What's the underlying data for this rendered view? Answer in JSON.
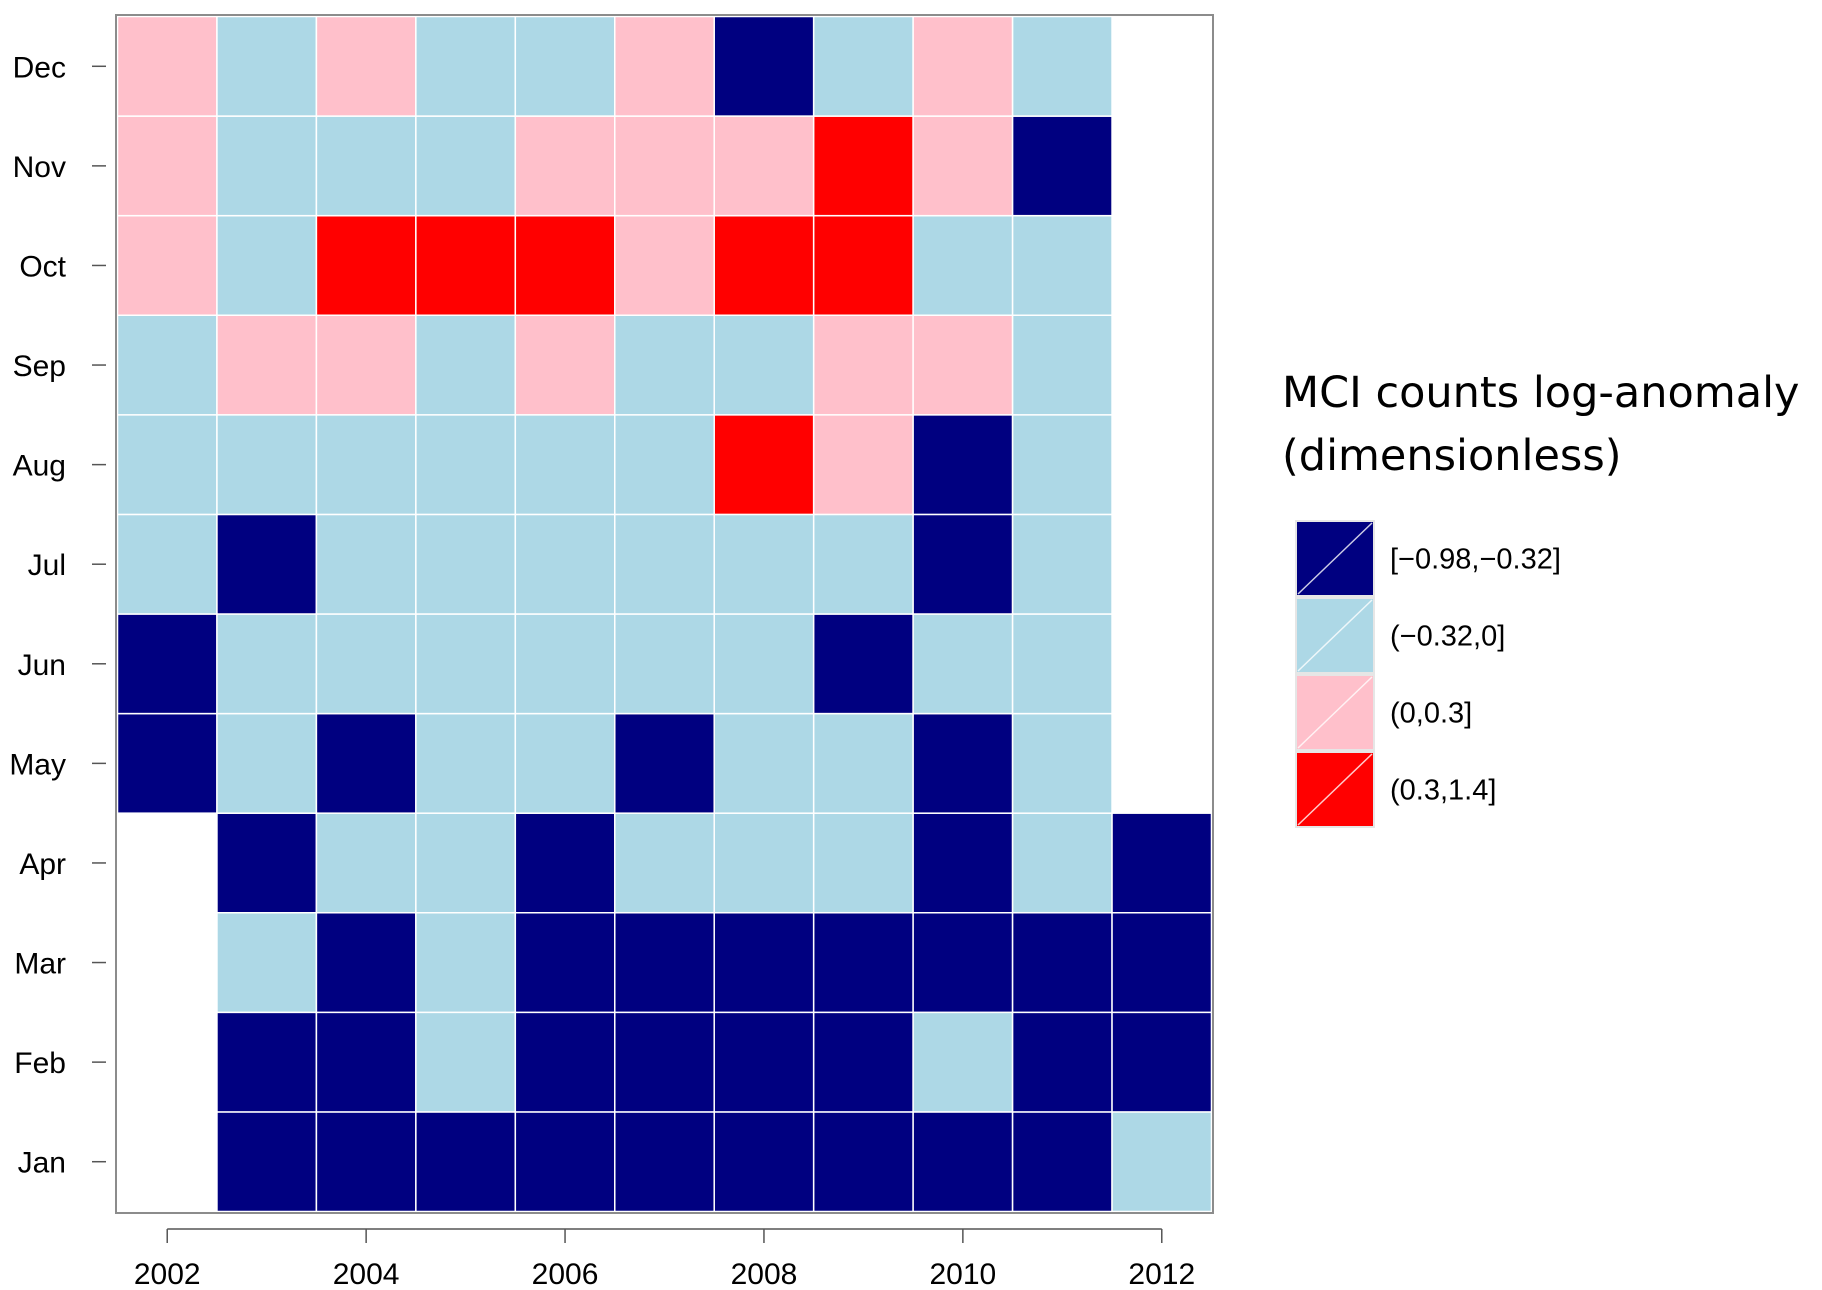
{
  "chart_data": {
    "type": "heatmap",
    "x": [
      "2002",
      "2003",
      "2004",
      "2005",
      "2006",
      "2007",
      "2008",
      "2009",
      "2010",
      "2011",
      "2012"
    ],
    "x_tick_labels": [
      "2002",
      "2004",
      "2006",
      "2008",
      "2010",
      "2012"
    ],
    "y": [
      "Jan",
      "Feb",
      "Mar",
      "Apr",
      "May",
      "Jun",
      "Jul",
      "Aug",
      "Sep",
      "Oct",
      "Nov",
      "Dec"
    ],
    "legend_title": [
      "MCI counts log-anomaly",
      "(dimensionless)"
    ],
    "categories": [
      {
        "label": "[−0.98,−0.32]",
        "color": "#000080"
      },
      {
        "label": "(−0.32,0]",
        "color": "#ADD8E6"
      },
      {
        "label": "(0,0.3]",
        "color": "#FFC0CB"
      },
      {
        "label": "(0.3,1.4]",
        "color": "#FF0000"
      }
    ],
    "values_note": "category index per cell; null = no data; rows Jan..Dec, columns 2002..2012",
    "values": [
      [
        null,
        0,
        0,
        0,
        0,
        0,
        0,
        0,
        0,
        0,
        1
      ],
      [
        null,
        0,
        0,
        1,
        0,
        0,
        0,
        0,
        1,
        0,
        0
      ],
      [
        null,
        1,
        0,
        1,
        0,
        0,
        0,
        0,
        0,
        0,
        0
      ],
      [
        null,
        0,
        1,
        1,
        0,
        1,
        1,
        1,
        0,
        1,
        0
      ],
      [
        0,
        1,
        0,
        1,
        1,
        0,
        1,
        1,
        0,
        1,
        null
      ],
      [
        0,
        1,
        1,
        1,
        1,
        1,
        1,
        0,
        1,
        1,
        null
      ],
      [
        1,
        0,
        1,
        1,
        1,
        1,
        1,
        1,
        0,
        1,
        null
      ],
      [
        1,
        1,
        1,
        1,
        1,
        1,
        3,
        2,
        0,
        1,
        null
      ],
      [
        1,
        2,
        2,
        1,
        2,
        1,
        1,
        2,
        2,
        1,
        null
      ],
      [
        2,
        1,
        3,
        3,
        3,
        2,
        3,
        3,
        1,
        1,
        null
      ],
      [
        2,
        1,
        1,
        1,
        2,
        2,
        2,
        3,
        2,
        0,
        null
      ],
      [
        2,
        1,
        2,
        1,
        1,
        2,
        0,
        1,
        2,
        1,
        null
      ]
    ],
    "grid": false,
    "legend_position": "right"
  }
}
